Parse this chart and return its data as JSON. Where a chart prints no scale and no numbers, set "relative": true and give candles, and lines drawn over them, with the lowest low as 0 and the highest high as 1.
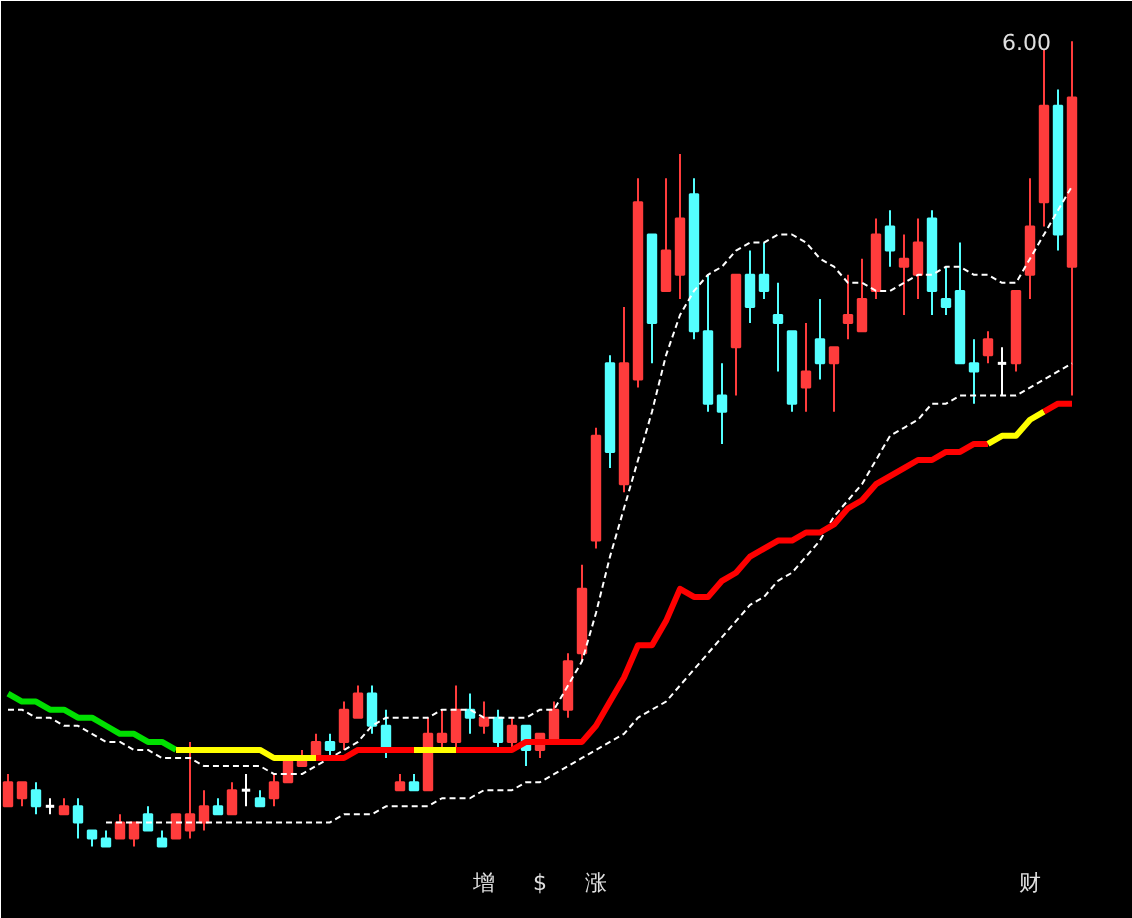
{
  "chart_data": {
    "type": "candlestick",
    "relative": true,
    "tick_labels": false,
    "categories": [
      null,
      null,
      null,
      null,
      null,
      null,
      null,
      null,
      null,
      null,
      null,
      null,
      null,
      null,
      null,
      null,
      null,
      null,
      null,
      null,
      null,
      null,
      null,
      null,
      null,
      null,
      null,
      null,
      null,
      null,
      null,
      null,
      null,
      null,
      null,
      null,
      null,
      null,
      null,
      null,
      null,
      null,
      null,
      null,
      null,
      null,
      null,
      null,
      null,
      null,
      null,
      null,
      null,
      null,
      null,
      null,
      null,
      null,
      null,
      null,
      null,
      null,
      null,
      null,
      null,
      null,
      null,
      null,
      null,
      null,
      null,
      null,
      null,
      null,
      null,
      null,
      null
    ],
    "ohlc": [
      [
        0.05,
        0.09,
        0.05,
        0.08
      ],
      [
        0.06,
        0.08,
        0.05,
        0.08
      ],
      [
        0.07,
        0.08,
        0.04,
        0.05
      ],
      [
        0.05,
        0.06,
        0.04,
        0.05
      ],
      [
        0.04,
        0.06,
        0.04,
        0.05
      ],
      [
        0.05,
        0.06,
        0.01,
        0.03
      ],
      [
        0.02,
        0.02,
        0.0,
        0.01
      ],
      [
        0.01,
        0.02,
        0.0,
        0.0
      ],
      [
        0.01,
        0.04,
        0.01,
        0.03
      ],
      [
        0.01,
        0.03,
        0.0,
        0.03
      ],
      [
        0.04,
        0.05,
        0.02,
        0.02
      ],
      [
        0.01,
        0.02,
        0.0,
        0.0
      ],
      [
        0.01,
        0.04,
        0.01,
        0.04
      ],
      [
        0.02,
        0.13,
        0.01,
        0.04
      ],
      [
        0.03,
        0.07,
        0.02,
        0.05
      ],
      [
        0.05,
        0.06,
        0.04,
        0.04
      ],
      [
        0.04,
        0.08,
        0.04,
        0.07
      ],
      [
        0.07,
        0.09,
        0.05,
        0.07
      ],
      [
        0.06,
        0.07,
        0.05,
        0.05
      ],
      [
        0.06,
        0.09,
        0.05,
        0.08
      ],
      [
        0.08,
        0.11,
        0.08,
        0.11
      ],
      [
        0.1,
        0.12,
        0.1,
        0.11
      ],
      [
        0.11,
        0.14,
        0.11,
        0.13
      ],
      [
        0.13,
        0.14,
        0.11,
        0.12
      ],
      [
        0.13,
        0.18,
        0.12,
        0.17
      ],
      [
        0.16,
        0.2,
        0.16,
        0.19
      ],
      [
        0.19,
        0.2,
        0.14,
        0.15
      ],
      [
        0.15,
        0.17,
        0.11,
        0.12
      ],
      [
        0.07,
        0.09,
        0.07,
        0.08
      ],
      [
        0.08,
        0.09,
        0.07,
        0.07
      ],
      [
        0.07,
        0.16,
        0.07,
        0.14
      ],
      [
        0.13,
        0.17,
        0.12,
        0.14
      ],
      [
        0.13,
        0.2,
        0.12,
        0.17
      ],
      [
        0.17,
        0.19,
        0.14,
        0.16
      ],
      [
        0.15,
        0.18,
        0.14,
        0.16
      ],
      [
        0.16,
        0.17,
        0.12,
        0.13
      ],
      [
        0.13,
        0.16,
        0.12,
        0.15
      ],
      [
        0.15,
        0.15,
        0.1,
        0.12
      ],
      [
        0.12,
        0.14,
        0.11,
        0.14
      ],
      [
        0.13,
        0.18,
        0.13,
        0.17
      ],
      [
        0.17,
        0.24,
        0.16,
        0.23
      ],
      [
        0.24,
        0.35,
        0.23,
        0.32
      ],
      [
        0.38,
        0.52,
        0.37,
        0.51
      ],
      [
        0.6,
        0.61,
        0.47,
        0.49
      ],
      [
        0.45,
        0.67,
        0.44,
        0.6
      ],
      [
        0.58,
        0.83,
        0.57,
        0.8
      ],
      [
        0.76,
        0.76,
        0.6,
        0.65
      ],
      [
        0.69,
        0.83,
        0.69,
        0.74
      ],
      [
        0.71,
        0.86,
        0.68,
        0.78
      ],
      [
        0.81,
        0.83,
        0.63,
        0.64
      ],
      [
        0.64,
        0.71,
        0.54,
        0.55
      ],
      [
        0.56,
        0.6,
        0.5,
        0.54
      ],
      [
        0.62,
        0.71,
        0.56,
        0.71
      ],
      [
        0.71,
        0.74,
        0.65,
        0.67
      ],
      [
        0.71,
        0.75,
        0.68,
        0.69
      ],
      [
        0.66,
        0.7,
        0.59,
        0.65
      ],
      [
        0.64,
        0.64,
        0.54,
        0.55
      ],
      [
        0.57,
        0.65,
        0.54,
        0.59
      ],
      [
        0.63,
        0.68,
        0.58,
        0.6
      ],
      [
        0.6,
        0.62,
        0.54,
        0.62
      ],
      [
        0.65,
        0.71,
        0.63,
        0.66
      ],
      [
        0.64,
        0.73,
        0.64,
        0.68
      ],
      [
        0.69,
        0.78,
        0.68,
        0.76
      ],
      [
        0.77,
        0.79,
        0.72,
        0.74
      ],
      [
        0.72,
        0.76,
        0.66,
        0.73
      ],
      [
        0.71,
        0.78,
        0.68,
        0.75
      ],
      [
        0.78,
        0.79,
        0.66,
        0.69
      ],
      [
        0.68,
        0.72,
        0.66,
        0.67
      ],
      [
        0.69,
        0.75,
        0.6,
        0.6
      ],
      [
        0.6,
        0.63,
        0.55,
        0.59
      ],
      [
        0.61,
        0.64,
        0.6,
        0.63
      ],
      [
        0.6,
        0.62,
        0.56,
        0.6
      ],
      [
        0.6,
        0.69,
        0.59,
        0.69
      ],
      [
        0.71,
        0.83,
        0.68,
        0.77
      ],
      [
        0.8,
        0.99,
        0.77,
        0.92
      ],
      [
        0.92,
        0.94,
        0.74,
        0.76
      ],
      [
        0.72,
        1.0,
        0.56,
        0.93
      ]
    ],
    "colors": [
      "#ff3c3c",
      "#ff3c3c",
      "#54ffff",
      "#ffffff",
      "#ff3c3c",
      "#54ffff",
      "#54ffff",
      "#54ffff",
      "#ff3c3c",
      "#ff3c3c",
      "#54ffff",
      "#54ffff",
      "#ff3c3c",
      "#ff3c3c",
      "#ff3c3c",
      "#54ffff",
      "#ff3c3c",
      "#ffffff",
      "#54ffff",
      "#ff3c3c",
      "#ff3c3c",
      "#ff3c3c",
      "#ff3c3c",
      "#54ffff",
      "#ff3c3c",
      "#ff3c3c",
      "#54ffff",
      "#54ffff",
      "#ff3c3c",
      "#54ffff",
      "#ff3c3c",
      "#ff3c3c",
      "#ff3c3c",
      "#54ffff",
      "#ff3c3c",
      "#54ffff",
      "#ff3c3c",
      "#54ffff",
      "#ff3c3c",
      "#ff3c3c",
      "#ff3c3c",
      "#ff3c3c",
      "#ff3c3c",
      "#54ffff",
      "#ff3c3c",
      "#ff3c3c",
      "#54ffff",
      "#ff3c3c",
      "#ff3c3c",
      "#54ffff",
      "#54ffff",
      "#54ffff",
      "#ff3c3c",
      "#54ffff",
      "#54ffff",
      "#54ffff",
      "#54ffff",
      "#ff3c3c",
      "#54ffff",
      "#ff3c3c",
      "#ff3c3c",
      "#ff3c3c",
      "#ff3c3c",
      "#54ffff",
      "#ff3c3c",
      "#ff3c3c",
      "#54ffff",
      "#54ffff",
      "#54ffff",
      "#54ffff",
      "#ff3c3c",
      "#ffffff",
      "#ff3c3c",
      "#ff3c3c",
      "#ff3c3c",
      "#54ffff",
      "#ff3c3c"
    ],
    "series": [
      {
        "type": "line",
        "color": "#ffffff",
        "line_style": "dashed",
        "values": [
          0.17,
          0.17,
          0.16,
          0.16,
          0.15,
          0.15,
          0.14,
          0.13,
          0.13,
          0.12,
          0.12,
          0.11,
          0.11,
          0.11,
          0.1,
          0.1,
          0.1,
          0.1,
          0.1,
          0.09,
          0.09,
          0.09,
          0.1,
          0.11,
          0.12,
          0.13,
          0.15,
          0.16,
          0.16,
          0.16,
          0.16,
          0.17,
          0.17,
          0.17,
          0.16,
          0.16,
          0.16,
          0.16,
          0.17,
          0.17,
          0.2,
          0.23,
          0.29,
          0.36,
          0.42,
          0.48,
          0.54,
          0.61,
          0.66,
          0.69,
          0.71,
          0.72,
          0.74,
          0.75,
          0.75,
          0.76,
          0.76,
          0.75,
          0.73,
          0.72,
          0.7,
          0.7,
          0.69,
          0.69,
          0.7,
          0.71,
          0.71,
          0.72,
          0.72,
          0.71,
          0.71,
          0.7,
          0.7,
          0.73,
          0.76,
          0.79,
          0.82
        ]
      },
      {
        "type": "line",
        "color": "#ffffff",
        "line_style": "dashed",
        "values": [
          null,
          null,
          null,
          null,
          null,
          null,
          null,
          0.03,
          0.03,
          0.03,
          0.03,
          0.03,
          0.03,
          0.03,
          0.03,
          0.03,
          0.03,
          0.03,
          0.03,
          0.03,
          0.03,
          0.03,
          0.03,
          0.03,
          0.04,
          0.04,
          0.04,
          0.05,
          0.05,
          0.05,
          0.05,
          0.06,
          0.06,
          0.06,
          0.07,
          0.07,
          0.07,
          0.08,
          0.08,
          0.09,
          0.1,
          0.11,
          0.12,
          0.13,
          0.14,
          0.16,
          0.17,
          0.18,
          0.2,
          0.22,
          0.24,
          0.26,
          0.28,
          0.3,
          0.31,
          0.33,
          0.34,
          0.36,
          0.38,
          0.41,
          0.43,
          0.45,
          0.48,
          0.51,
          0.52,
          0.53,
          0.55,
          0.55,
          0.56,
          0.56,
          0.56,
          0.56,
          0.56,
          0.57,
          0.58,
          0.59,
          0.6
        ]
      },
      {
        "type": "line",
        "color": "#00e000",
        "line_style": "solid",
        "values": [
          0.19,
          0.18,
          0.18,
          0.17,
          0.17,
          0.16,
          0.16,
          0.15,
          0.14,
          0.14,
          0.13,
          0.13,
          0.12,
          null,
          null,
          null,
          null,
          null,
          null,
          null,
          null,
          null,
          null,
          null,
          null,
          null,
          null,
          null,
          null,
          null,
          null,
          null,
          null,
          null,
          null,
          null,
          null,
          null,
          null,
          null,
          null,
          null,
          null,
          null,
          null,
          null,
          null,
          null,
          null,
          null,
          null,
          null,
          null,
          null,
          null,
          null,
          null,
          null,
          null,
          null,
          null,
          null,
          null,
          null,
          null,
          null,
          null,
          null,
          null,
          null,
          null,
          null,
          null,
          null,
          null,
          null,
          null
        ]
      },
      {
        "type": "line",
        "color": "#ffff00",
        "line_style": "solid",
        "values": [
          null,
          null,
          null,
          null,
          null,
          null,
          null,
          null,
          null,
          null,
          null,
          null,
          0.12,
          0.12,
          0.12,
          0.12,
          0.12,
          0.12,
          0.12,
          0.11,
          0.11,
          0.11,
          0.11,
          null,
          null,
          null,
          null,
          null,
          null,
          null,
          null,
          null,
          null,
          null,
          null,
          null,
          null,
          null,
          null,
          null,
          null,
          null,
          null,
          null,
          null,
          null,
          null,
          null,
          null,
          null,
          null,
          null,
          null,
          null,
          null,
          null,
          null,
          null,
          null,
          null,
          null,
          null,
          null,
          null,
          null,
          null,
          null,
          null,
          null,
          null,
          null,
          null,
          null,
          null,
          null,
          null,
          null
        ]
      },
      {
        "type": "line",
        "color": "#ff0000",
        "line_style": "solid",
        "values": [
          null,
          null,
          null,
          null,
          null,
          null,
          null,
          null,
          null,
          null,
          null,
          null,
          null,
          null,
          null,
          null,
          null,
          null,
          null,
          null,
          null,
          null,
          0.11,
          0.11,
          0.11,
          0.12,
          0.12,
          0.12,
          0.12,
          0.12,
          null,
          null,
          null,
          null,
          null,
          null,
          null,
          null,
          null,
          null,
          null,
          null,
          null,
          null,
          null,
          null,
          null,
          null,
          null,
          null,
          null,
          null,
          null,
          null,
          null,
          null,
          null,
          null,
          null,
          null,
          null,
          null,
          null,
          null,
          null,
          null,
          null,
          null,
          null,
          null,
          null,
          null,
          null,
          null,
          null,
          null,
          null
        ]
      },
      {
        "type": "line",
        "color": "#ffff00",
        "line_style": "solid",
        "values": [
          null,
          null,
          null,
          null,
          null,
          null,
          null,
          null,
          null,
          null,
          null,
          null,
          null,
          null,
          null,
          null,
          null,
          null,
          null,
          null,
          null,
          null,
          null,
          null,
          null,
          null,
          null,
          null,
          null,
          0.12,
          0.12,
          0.12,
          0.12,
          null,
          null,
          null,
          null,
          null,
          null,
          null,
          null,
          null,
          null,
          null,
          null,
          null,
          null,
          null,
          null,
          null,
          null,
          null,
          null,
          null,
          null,
          null,
          null,
          null,
          null,
          null,
          null,
          null,
          null,
          null,
          null,
          null,
          null,
          null,
          null,
          null,
          null,
          null,
          null,
          null,
          null,
          null,
          null
        ]
      },
      {
        "type": "line",
        "color": "#ff0000",
        "line_style": "solid",
        "values": [
          null,
          null,
          null,
          null,
          null,
          null,
          null,
          null,
          null,
          null,
          null,
          null,
          null,
          null,
          null,
          null,
          null,
          null,
          null,
          null,
          null,
          null,
          null,
          null,
          null,
          null,
          null,
          null,
          null,
          null,
          null,
          null,
          0.12,
          0.12,
          0.12,
          0.12,
          0.12,
          0.13,
          0.13,
          0.13,
          0.13,
          0.13,
          0.15,
          0.18,
          0.21,
          0.25,
          0.25,
          0.28,
          0.32,
          0.31,
          0.31,
          0.33,
          0.34,
          0.36,
          0.37,
          0.38,
          0.38,
          0.39,
          0.39,
          0.4,
          0.42,
          0.43,
          0.45,
          0.46,
          0.47,
          0.48,
          0.48,
          0.49,
          0.49,
          0.5,
          0.5,
          null,
          null,
          null,
          null,
          null,
          null
        ]
      },
      {
        "type": "line",
        "color": "#ffff00",
        "line_style": "solid",
        "values": [
          null,
          null,
          null,
          null,
          null,
          null,
          null,
          null,
          null,
          null,
          null,
          null,
          null,
          null,
          null,
          null,
          null,
          null,
          null,
          null,
          null,
          null,
          null,
          null,
          null,
          null,
          null,
          null,
          null,
          null,
          null,
          null,
          null,
          null,
          null,
          null,
          null,
          null,
          null,
          null,
          null,
          null,
          null,
          null,
          null,
          null,
          null,
          null,
          null,
          null,
          null,
          null,
          null,
          null,
          null,
          null,
          null,
          null,
          null,
          null,
          null,
          null,
          null,
          null,
          null,
          null,
          null,
          null,
          null,
          null,
          0.5,
          0.51,
          0.51,
          0.53,
          0.54,
          null,
          null
        ]
      },
      {
        "type": "line",
        "color": "#ff0000",
        "line_style": "solid",
        "values": [
          null,
          null,
          null,
          null,
          null,
          null,
          null,
          null,
          null,
          null,
          null,
          null,
          null,
          null,
          null,
          null,
          null,
          null,
          null,
          null,
          null,
          null,
          null,
          null,
          null,
          null,
          null,
          null,
          null,
          null,
          null,
          null,
          null,
          null,
          null,
          null,
          null,
          null,
          null,
          null,
          null,
          null,
          null,
          null,
          null,
          null,
          null,
          null,
          null,
          null,
          null,
          null,
          null,
          null,
          null,
          null,
          null,
          null,
          null,
          null,
          null,
          null,
          null,
          null,
          null,
          null,
          null,
          null,
          null,
          null,
          null,
          null,
          null,
          null,
          0.54,
          0.55,
          0.55
        ]
      }
    ],
    "annotations": [
      "6.00",
      "增",
      "$",
      "涨",
      "财"
    ]
  }
}
